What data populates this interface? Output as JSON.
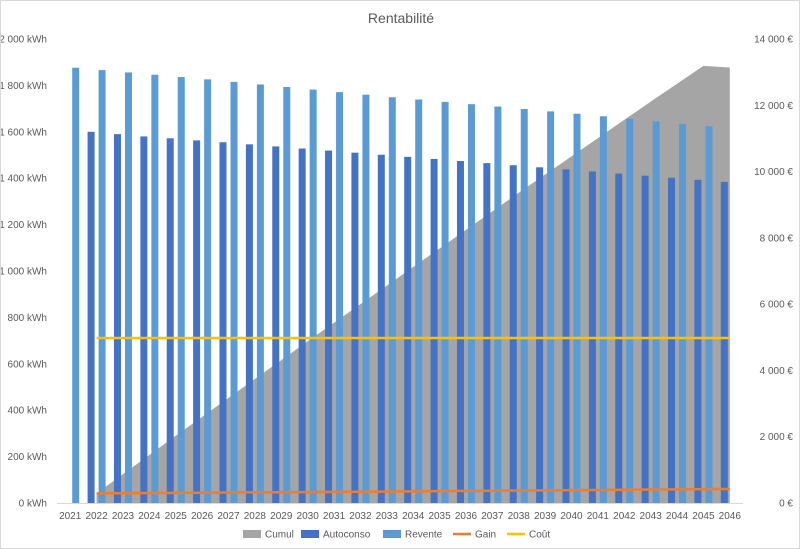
{
  "chart_data": {
    "type": "bar",
    "title": "Rentabilité",
    "categories": [
      "2021",
      "2022",
      "2023",
      "2024",
      "2025",
      "2026",
      "2027",
      "2028",
      "2029",
      "2030",
      "2031",
      "2032",
      "2033",
      "2034",
      "2035",
      "2036",
      "2037",
      "2038",
      "2039",
      "2040",
      "2041",
      "2042",
      "2043",
      "2044",
      "2045",
      "2046"
    ],
    "y_left": {
      "ylim": [
        0,
        2000
      ],
      "ticks": [
        0,
        200,
        400,
        600,
        800,
        1000,
        1200,
        1400,
        1600,
        1800,
        2000
      ],
      "tick_labels": [
        "0 kWh",
        "200 kWh",
        "400 kWh",
        "600 kWh",
        "800 kWh",
        "1 000 kWh",
        "1 200 kWh",
        "1 400 kWh",
        "1 600 kWh",
        "1 800 kWh",
        "2 000 kWh"
      ]
    },
    "y_right": {
      "ylim": [
        0,
        14000
      ],
      "ticks": [
        0,
        2000,
        4000,
        6000,
        8000,
        10000,
        12000,
        14000
      ],
      "tick_labels": [
        "0 €",
        "2 000 €",
        "4 000 €",
        "6 000 €",
        "8 000 €",
        "10 000 €",
        "12 000 €",
        "14 000 €"
      ]
    },
    "series": [
      {
        "name": "Cumul",
        "kind": "area",
        "axis": "right",
        "color": "#a5a5a5",
        "values": [
          null,
          290,
          870,
          1450,
          2030,
          2600,
          3170,
          3740,
          4310,
          4880,
          5440,
          6000,
          6560,
          7120,
          7680,
          8240,
          8800,
          9360,
          9910,
          10460,
          11010,
          11560,
          12110,
          12650,
          13190,
          13140
        ]
      },
      {
        "name": "Autoconso",
        "kind": "bar",
        "axis": "left",
        "color": "#4472c4",
        "values": [
          null,
          1600,
          1590,
          1580,
          1572,
          1563,
          1555,
          1546,
          1537,
          1528,
          1519,
          1510,
          1501,
          1492,
          1483,
          1474,
          1465,
          1456,
          1447,
          1438,
          1429,
          1420,
          1411,
          1402,
          1393,
          1384
        ]
      },
      {
        "name": "Revente",
        "kind": "bar",
        "axis": "left",
        "color": "#5b9bd5",
        "values": [
          1876,
          1866,
          1856,
          1846,
          1836,
          1826,
          1815,
          1804,
          1793,
          1782,
          1771,
          1760,
          1749,
          1739,
          1729,
          1719,
          1709,
          1698,
          1688,
          1678,
          1667,
          1656,
          1645,
          1634,
          1624,
          null
        ]
      },
      {
        "name": "Gain",
        "kind": "line",
        "axis": "right",
        "color": "#ed7d31",
        "values": [
          null,
          290,
          295,
          300,
          305,
          310,
          315,
          320,
          325,
          330,
          335,
          340,
          346,
          352,
          358,
          364,
          370,
          376,
          382,
          388,
          394,
          400,
          406,
          412,
          418,
          424
        ]
      },
      {
        "name": "Coût",
        "kind": "line",
        "axis": "right",
        "color": "#ffc000",
        "values": [
          null,
          4980,
          4980,
          4980,
          4980,
          4980,
          4980,
          4980,
          4980,
          4980,
          4980,
          4980,
          4980,
          4980,
          4980,
          4980,
          4980,
          4980,
          4980,
          4980,
          4980,
          4980,
          4980,
          4980,
          4980,
          4980
        ]
      }
    ],
    "legend_position": "bottom",
    "grid": false
  }
}
